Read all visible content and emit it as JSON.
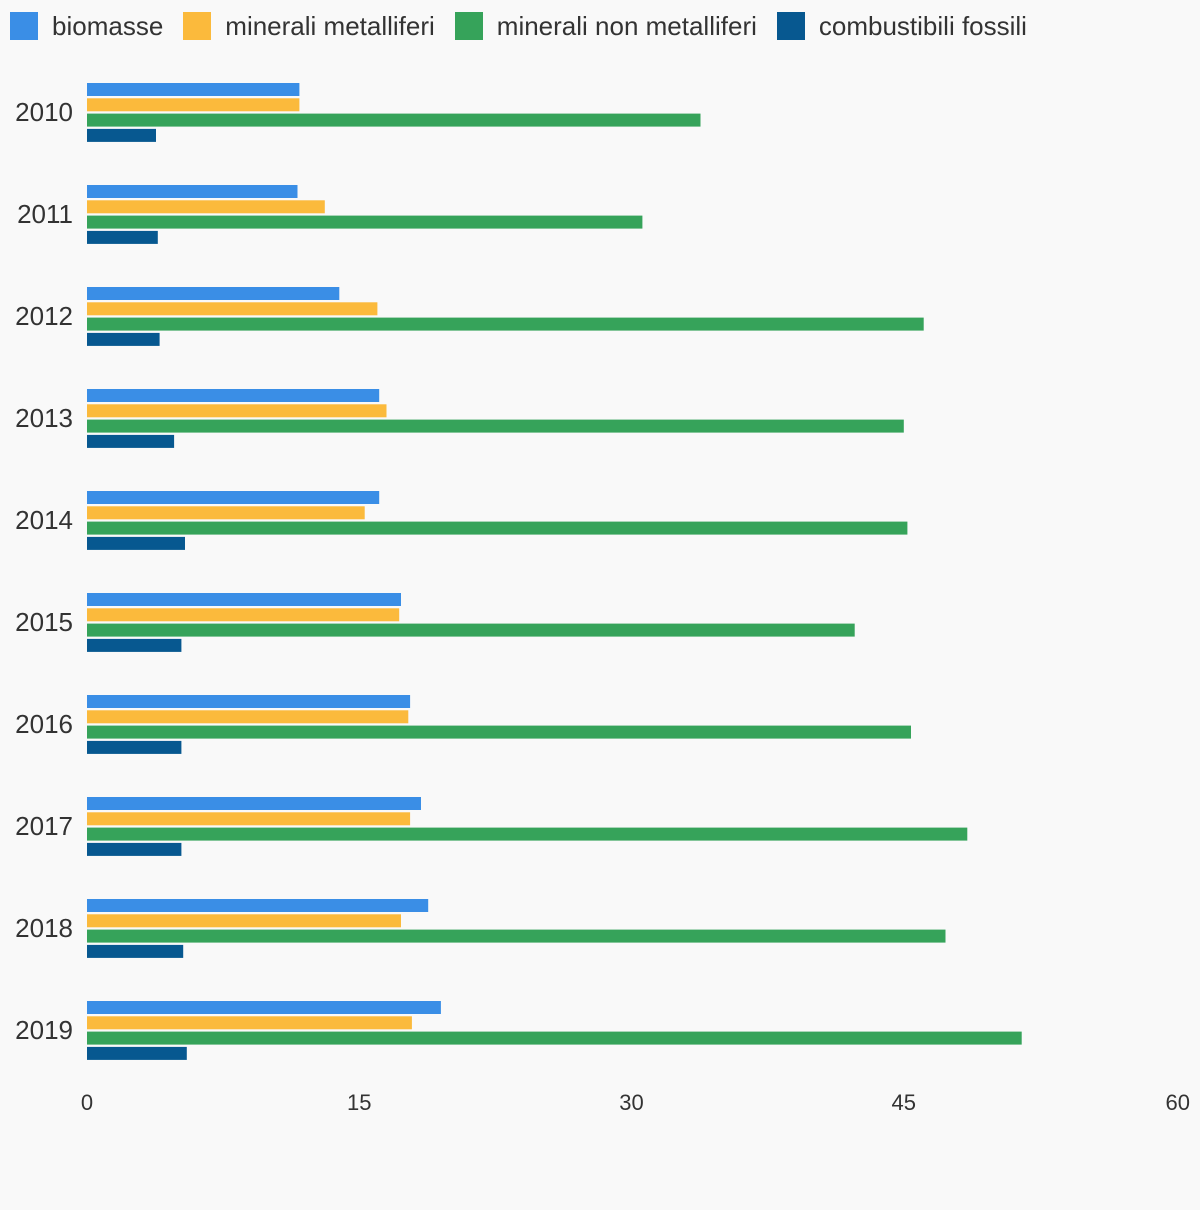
{
  "chart_data": {
    "type": "bar",
    "orientation": "horizontal",
    "categories": [
      "2010",
      "2011",
      "2012",
      "2013",
      "2014",
      "2015",
      "2016",
      "2017",
      "2018",
      "2019"
    ],
    "series": [
      {
        "name": "biomasse",
        "color": "#3a8ee6",
        "values": [
          11.7,
          11.6,
          13.9,
          16.1,
          16.1,
          17.3,
          17.8,
          18.4,
          18.8,
          19.5
        ]
      },
      {
        "name": "minerali metalliferi",
        "color": "#fbba3c",
        "values": [
          11.7,
          13.1,
          16.0,
          16.5,
          15.3,
          17.2,
          17.7,
          17.8,
          17.3,
          17.9
        ]
      },
      {
        "name": "minerali non metalliferi",
        "color": "#36a35a",
        "values": [
          33.8,
          30.6,
          46.1,
          45.0,
          45.2,
          42.3,
          45.4,
          48.5,
          47.3,
          51.5
        ]
      },
      {
        "name": "combustibili fossili",
        "color": "#075890",
        "values": [
          3.8,
          3.9,
          4.0,
          4.8,
          5.4,
          5.2,
          5.2,
          5.2,
          5.3,
          5.5
        ]
      }
    ],
    "xlim": [
      0,
      60
    ],
    "xticks": [
      "0",
      "15",
      "30",
      "45",
      "60"
    ],
    "legend_position": "top-left",
    "grid": false
  }
}
